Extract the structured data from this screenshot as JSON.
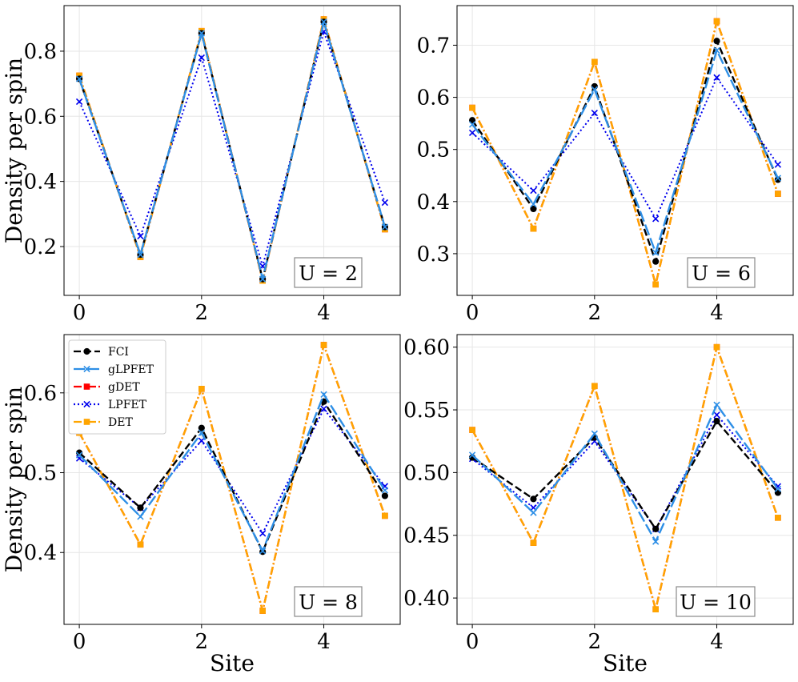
{
  "chart_data": [
    {
      "type": "line",
      "annotation": "U = 2",
      "xlabel": "",
      "ylabel": "Density per spin",
      "xlim": [
        -0.25,
        5.25
      ],
      "ylim": [
        0.05,
        0.94
      ],
      "xticks": [
        "0",
        "2",
        "4"
      ],
      "yticks": [
        "0.2",
        "0.4",
        "0.6",
        "0.8"
      ],
      "categories": [
        0,
        1,
        2,
        3,
        4,
        5
      ],
      "series": [
        {
          "name": "FCI",
          "values": [
            0.715,
            0.175,
            0.855,
            0.1,
            0.89,
            0.26
          ]
        },
        {
          "name": "gLPFET",
          "values": [
            0.715,
            0.175,
            0.855,
            0.1,
            0.89,
            0.26
          ]
        },
        {
          "name": "gDET",
          "values": [
            0.725,
            0.168,
            0.862,
            0.095,
            0.898,
            0.253
          ]
        },
        {
          "name": "LPFET",
          "values": [
            0.645,
            0.232,
            0.78,
            0.14,
            0.86,
            0.335
          ]
        },
        {
          "name": "DET",
          "values": [
            0.725,
            0.168,
            0.862,
            0.095,
            0.898,
            0.253
          ]
        }
      ]
    },
    {
      "type": "line",
      "annotation": "U = 6",
      "xlabel": "",
      "ylabel": "",
      "xlim": [
        -0.25,
        5.25
      ],
      "ylim": [
        0.22,
        0.776
      ],
      "xticks": [
        "0",
        "2",
        "4"
      ],
      "yticks": [
        "0.3",
        "0.4",
        "0.5",
        "0.6",
        "0.7"
      ],
      "categories": [
        0,
        1,
        2,
        3,
        4,
        5
      ],
      "series": [
        {
          "name": "FCI",
          "values": [
            0.556,
            0.386,
            0.621,
            0.285,
            0.708,
            0.442
          ]
        },
        {
          "name": "gLPFET",
          "values": [
            0.548,
            0.395,
            0.615,
            0.302,
            0.69,
            0.445
          ]
        },
        {
          "name": "gDET",
          "values": [
            0.58,
            0.348,
            0.668,
            0.241,
            0.746,
            0.415
          ]
        },
        {
          "name": "LPFET",
          "values": [
            0.532,
            0.421,
            0.57,
            0.367,
            0.638,
            0.471
          ]
        },
        {
          "name": "DET",
          "values": [
            0.58,
            0.348,
            0.668,
            0.241,
            0.746,
            0.415
          ]
        }
      ]
    },
    {
      "type": "line",
      "annotation": "U = 8",
      "xlabel": "Site",
      "ylabel": "Density per spin",
      "xlim": [
        -0.25,
        5.25
      ],
      "ylim": [
        0.31,
        0.673
      ],
      "xticks": [
        "0",
        "2",
        "4"
      ],
      "yticks": [
        "0.4",
        "0.5",
        "0.6"
      ],
      "categories": [
        0,
        1,
        2,
        3,
        4,
        5
      ],
      "series": [
        {
          "name": "FCI",
          "values": [
            0.525,
            0.456,
            0.556,
            0.401,
            0.589,
            0.471
          ]
        },
        {
          "name": "gLPFET",
          "values": [
            0.522,
            0.445,
            0.55,
            0.402,
            0.598,
            0.478
          ]
        },
        {
          "name": "gDET",
          "values": [
            0.55,
            0.41,
            0.605,
            0.327,
            0.66,
            0.446
          ]
        },
        {
          "name": "LPFET",
          "values": [
            0.518,
            0.456,
            0.54,
            0.424,
            0.58,
            0.483
          ]
        },
        {
          "name": "DET",
          "values": [
            0.55,
            0.41,
            0.605,
            0.327,
            0.66,
            0.446
          ]
        }
      ]
    },
    {
      "type": "line",
      "annotation": "U = 10",
      "xlabel": "Site",
      "ylabel": "",
      "xlim": [
        -0.25,
        5.25
      ],
      "ylim": [
        0.379,
        0.61
      ],
      "xticks": [
        "0",
        "2",
        "4"
      ],
      "yticks": [
        "0.40",
        "0.45",
        "0.50",
        "0.55",
        "0.60"
      ],
      "categories": [
        0,
        1,
        2,
        3,
        4,
        5
      ],
      "series": [
        {
          "name": "FCI",
          "values": [
            0.512,
            0.479,
            0.528,
            0.455,
            0.541,
            0.484
          ]
        },
        {
          "name": "gLPFET",
          "values": [
            0.514,
            0.468,
            0.531,
            0.445,
            0.554,
            0.487
          ]
        },
        {
          "name": "gDET",
          "values": [
            0.534,
            0.444,
            0.569,
            0.391,
            0.6,
            0.464
          ]
        },
        {
          "name": "LPFET",
          "values": [
            0.511,
            0.472,
            0.525,
            0.455,
            0.546,
            0.489
          ]
        },
        {
          "name": "DET",
          "values": [
            0.534,
            0.444,
            0.569,
            0.391,
            0.6,
            0.464
          ]
        }
      ]
    }
  ],
  "legend": {
    "location": "upper-left of bottom-left panel",
    "entries": [
      "FCI",
      "gLPFET",
      "gDET",
      "LPFET",
      "DET"
    ]
  },
  "styles": {
    "FCI": {
      "color": "#000000",
      "marker": "circle",
      "dash": "dashed"
    },
    "gLPFET": {
      "color": "#2e8fe6",
      "marker": "x",
      "dash": "longdash"
    },
    "gDET": {
      "color": "#ff0000",
      "marker": "square",
      "dash": "dashdot"
    },
    "LPFET": {
      "color": "#0000ee",
      "marker": "x",
      "dash": "dotted"
    },
    "DET": {
      "color": "#ffa500",
      "marker": "square",
      "dash": "dashdot"
    }
  }
}
